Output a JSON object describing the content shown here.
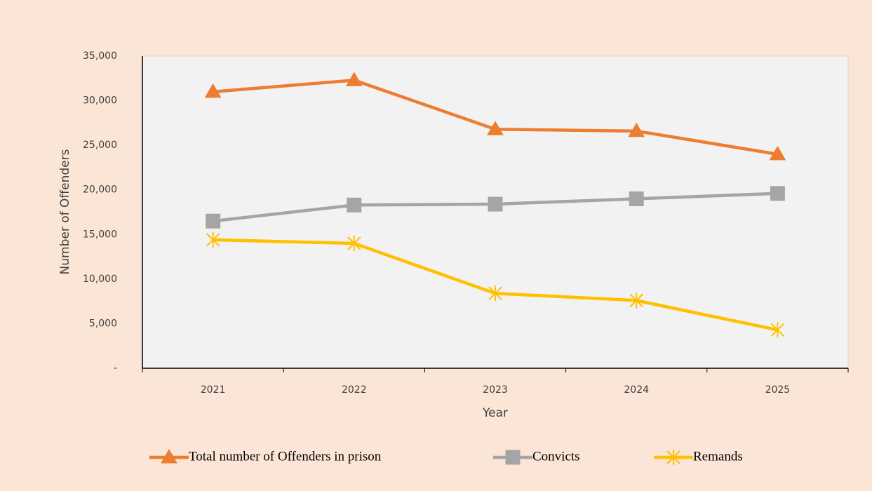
{
  "chart_data": {
    "type": "line",
    "y_label": "Number of Offenders",
    "x_label": "Year",
    "categories": [
      "2021",
      "2022",
      "2023",
      "2024",
      "2025"
    ],
    "series": [
      {
        "name": "Total number of Offenders in prison",
        "color": "#ed7d31",
        "marker": "triangle",
        "values": [
          31000,
          32300,
          26800,
          26600,
          24000
        ]
      },
      {
        "name": "Convicts",
        "color": "#a5a5a5",
        "marker": "square",
        "values": [
          16500,
          18300,
          18400,
          19000,
          19600
        ]
      },
      {
        "name": "Remands",
        "color": "#ffc000",
        "marker": "star",
        "values": [
          14400,
          14000,
          8400,
          7600,
          4300
        ]
      }
    ],
    "ylim": [
      0,
      35000
    ],
    "yticks": [
      {
        "value": 0,
        "label": "-"
      },
      {
        "value": 5000,
        "label": "5,000"
      },
      {
        "value": 10000,
        "label": "10,000"
      },
      {
        "value": 15000,
        "label": "15,000"
      },
      {
        "value": 20000,
        "label": "20,000"
      },
      {
        "value": 25000,
        "label": "25,000"
      },
      {
        "value": 30000,
        "label": "30,000"
      },
      {
        "value": 35000,
        "label": "35,000"
      }
    ],
    "grid": false,
    "legend": "bottom"
  }
}
